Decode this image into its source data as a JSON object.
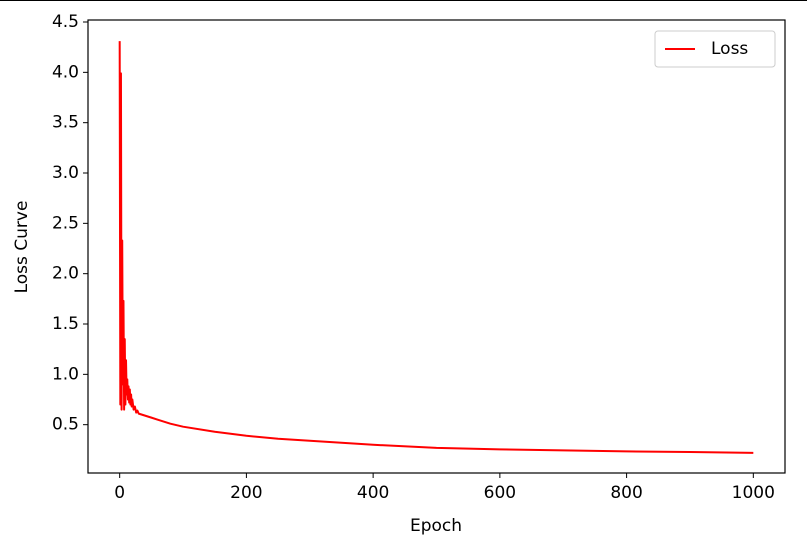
{
  "chart_data": {
    "type": "line",
    "xlabel": "Epoch",
    "ylabel": "Loss Curve",
    "x": [
      0,
      1,
      2,
      3,
      4,
      5,
      6,
      7,
      8,
      9,
      10,
      11,
      12,
      13,
      14,
      15,
      16,
      17,
      18,
      19,
      20,
      22,
      24,
      26,
      28,
      30,
      35,
      40,
      45,
      50,
      60,
      80,
      100,
      150,
      200,
      250,
      300,
      400,
      500,
      600,
      700,
      800,
      900,
      1000
    ],
    "series": [
      {
        "name": "Loss",
        "color": "#ff0000",
        "values": [
          4.31,
          0.7,
          3.99,
          0.65,
          2.33,
          0.9,
          1.73,
          0.65,
          1.35,
          0.7,
          1.14,
          0.8,
          0.95,
          0.75,
          0.88,
          0.72,
          0.85,
          0.7,
          0.8,
          0.68,
          0.75,
          0.65,
          0.68,
          0.62,
          0.64,
          0.61,
          0.6,
          0.59,
          0.58,
          0.57,
          0.55,
          0.51,
          0.48,
          0.43,
          0.39,
          0.36,
          0.34,
          0.3,
          0.27,
          0.255,
          0.245,
          0.235,
          0.228,
          0.22
        ]
      }
    ],
    "xlim": [
      -50,
      1050
    ],
    "ylim": [
      0.02,
      4.52
    ],
    "xticks": [
      0,
      200,
      400,
      600,
      800,
      1000
    ],
    "yticks": [
      0.5,
      1.0,
      1.5,
      2.0,
      2.5,
      3.0,
      3.5,
      4.0,
      4.5
    ],
    "legend": "upper right",
    "grid": false
  }
}
